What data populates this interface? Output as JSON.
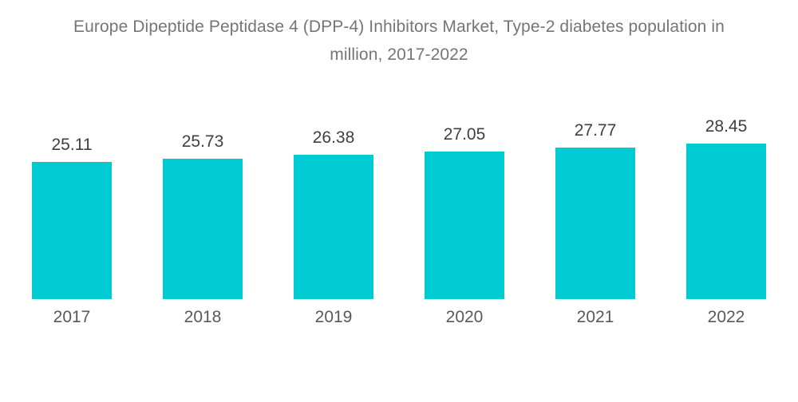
{
  "chart_data": {
    "type": "bar",
    "title": "Europe Dipeptide Peptidase 4 (DPP-4) Inhibitors Market, Type-2 diabetes population in million, 2017-2022",
    "title_lines": [
      "Europe Dipeptide Peptidase 4 (DPP-4) Inhibitors Market, Type-2 diabetes population in",
      "million, 2017-2022"
    ],
    "categories": [
      "2017",
      "2018",
      "2019",
      "2020",
      "2021",
      "2022"
    ],
    "values": [
      25.11,
      25.73,
      26.38,
      27.05,
      27.77,
      28.45
    ],
    "value_labels": [
      "25.11",
      "25.73",
      "26.38",
      "27.05",
      "27.77",
      "28.45"
    ],
    "xlabel": "",
    "ylabel": "",
    "ylim": [
      0,
      28.45
    ],
    "grid": false,
    "legend": false,
    "axes_visible": false,
    "bar_color": "#00CBD3",
    "value_label_color": "#3F3F3F",
    "year_label_color": "#58595B",
    "title_color": "#757575",
    "background_color": "#FFFFFF"
  }
}
